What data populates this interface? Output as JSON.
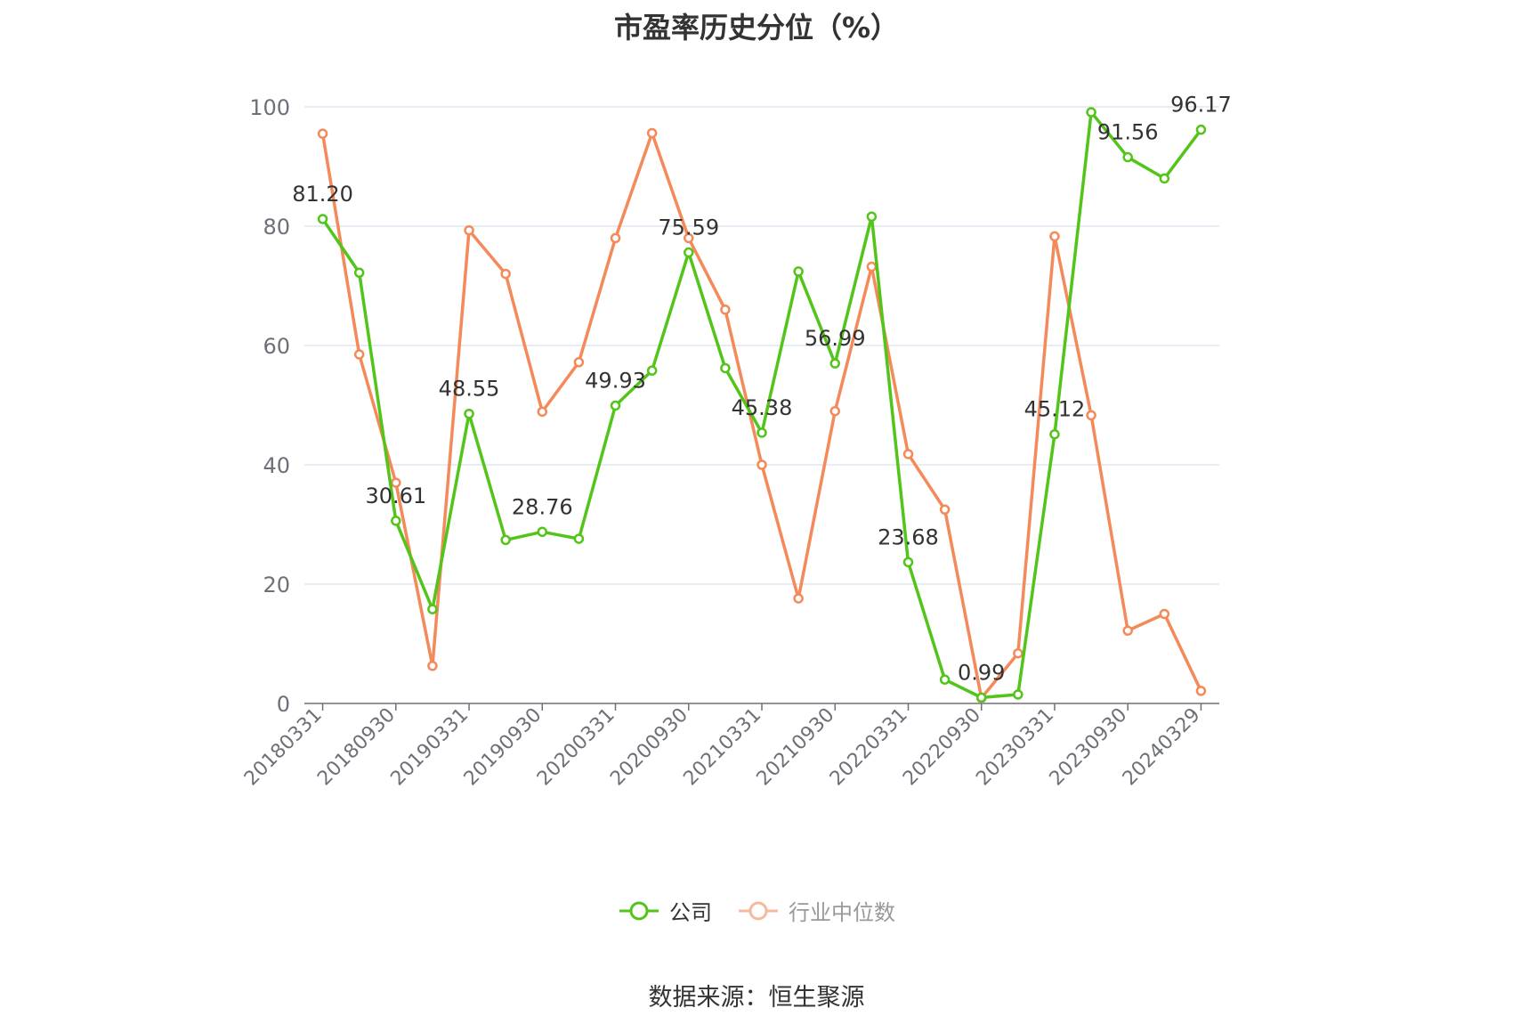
{
  "chart_data": {
    "type": "line",
    "title": "市盈率历史分位（%）",
    "ylim": [
      0,
      100
    ],
    "yticks": [
      0,
      20,
      40,
      60,
      80,
      100
    ],
    "grid": true,
    "legend_position": "bottom",
    "x": [
      "20180331",
      "20180630",
      "20180930",
      "20181231",
      "20190331",
      "20190630",
      "20190930",
      "20191231",
      "20200331",
      "20200630",
      "20200930",
      "20201231",
      "20210331",
      "20210630",
      "20210930",
      "20211231",
      "20220331",
      "20220630",
      "20220930",
      "20221230",
      "20230331",
      "20230630",
      "20230930",
      "20231229",
      "20240329"
    ],
    "xtick_labels": [
      "20180331",
      "20180930",
      "20190331",
      "20190930",
      "20200331",
      "20200930",
      "20210331",
      "20210930",
      "20220331",
      "20220930",
      "20230331",
      "20230930",
      "20240329"
    ],
    "series": [
      {
        "name": "公司",
        "color": "#52c41a",
        "values": [
          81.2,
          72.2,
          30.61,
          15.8,
          48.55,
          27.4,
          28.76,
          27.6,
          49.93,
          55.8,
          75.59,
          56.2,
          45.38,
          72.4,
          56.99,
          81.6,
          23.68,
          4.0,
          0.99,
          1.5,
          45.12,
          99.1,
          91.56,
          88.0,
          96.17
        ],
        "labels": [
          "81.20",
          "",
          "30.61",
          "",
          "48.55",
          "",
          "28.76",
          "",
          "49.93",
          "",
          "75.59",
          "",
          "45.38",
          "",
          "56.99",
          "",
          "23.68",
          "",
          "0.99",
          "",
          "45.12",
          "",
          "91.56",
          "",
          "96.17"
        ]
      },
      {
        "name": "行业中位数",
        "color": "#f4895a",
        "values": [
          95.5,
          58.5,
          37.0,
          6.3,
          79.3,
          72.0,
          48.9,
          57.2,
          78.0,
          95.6,
          78.0,
          66.0,
          40.0,
          17.6,
          49.0,
          73.2,
          41.8,
          32.5,
          0.9,
          8.4,
          78.3,
          48.3,
          12.2,
          15.0,
          2.1
        ]
      }
    ],
    "source": "数据来源：恒生聚源"
  }
}
